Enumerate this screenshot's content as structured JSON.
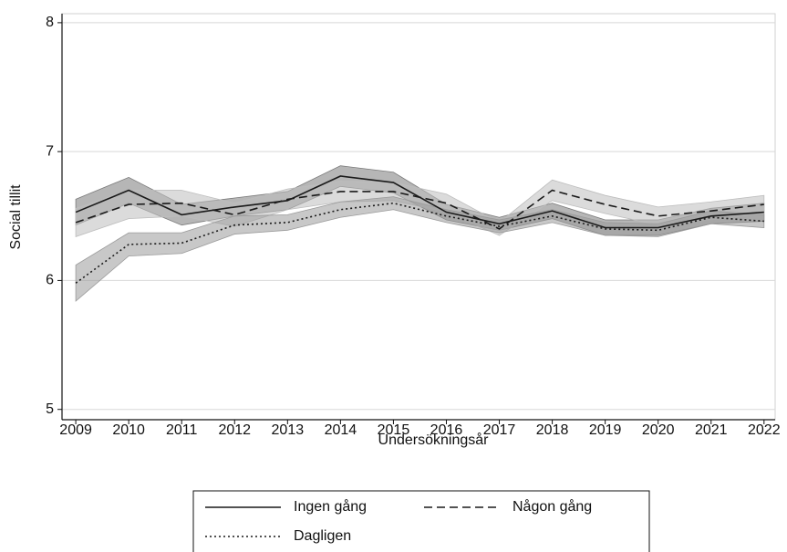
{
  "chart_data": {
    "type": "line",
    "x_label": "Undersökningsår",
    "y_label": "Social tillit",
    "x": [
      2009,
      2010,
      2011,
      2012,
      2013,
      2014,
      2015,
      2016,
      2017,
      2018,
      2019,
      2020,
      2021,
      2022
    ],
    "xlim": [
      2008.74,
      2022.21
    ],
    "xticks": [
      2009,
      2010,
      2011,
      2012,
      2013,
      2014,
      2015,
      2016,
      2017,
      2018,
      2019,
      2020,
      2021,
      2022
    ],
    "ylim": [
      4.92,
      8.07
    ],
    "yticks": [
      5,
      6,
      7,
      8
    ],
    "grid": true,
    "legend": "bottom",
    "series": [
      {
        "name": "Ingen gång",
        "color": "#1a1a1a",
        "style": "solid",
        "band_color": "#7a7a7a",
        "values": [
          6.53,
          6.7,
          6.51,
          6.57,
          6.62,
          6.81,
          6.76,
          6.53,
          6.44,
          6.54,
          6.41,
          6.41,
          6.5,
          6.53
        ],
        "lower": [
          6.43,
          6.6,
          6.43,
          6.5,
          6.55,
          6.73,
          6.68,
          6.47,
          6.39,
          6.48,
          6.35,
          6.35,
          6.44,
          6.46
        ],
        "upper": [
          6.63,
          6.8,
          6.59,
          6.64,
          6.69,
          6.89,
          6.84,
          6.59,
          6.49,
          6.6,
          6.47,
          6.47,
          6.56,
          6.6
        ]
      },
      {
        "name": "Någon gång",
        "color": "#1a1a1a",
        "style": "dashed",
        "band_color": "#bdbdbd",
        "values": [
          6.45,
          6.59,
          6.6,
          6.51,
          6.63,
          6.69,
          6.69,
          6.6,
          6.4,
          6.7,
          6.59,
          6.5,
          6.54,
          6.59
        ],
        "lower": [
          6.34,
          6.48,
          6.5,
          6.42,
          6.55,
          6.61,
          6.62,
          6.53,
          6.35,
          6.62,
          6.52,
          6.43,
          6.47,
          6.52
        ],
        "upper": [
          6.56,
          6.7,
          6.7,
          6.6,
          6.71,
          6.77,
          6.76,
          6.67,
          6.45,
          6.78,
          6.66,
          6.57,
          6.61,
          6.66
        ]
      },
      {
        "name": "Dagligen",
        "color": "#1a1a1a",
        "style": "dotted",
        "band_color": "#9a9a9a",
        "values": [
          5.98,
          6.28,
          6.29,
          6.43,
          6.45,
          6.55,
          6.6,
          6.5,
          6.42,
          6.5,
          6.4,
          6.39,
          6.49,
          6.46
        ],
        "lower": [
          5.84,
          6.19,
          6.21,
          6.36,
          6.39,
          6.49,
          6.55,
          6.45,
          6.37,
          6.45,
          6.35,
          6.34,
          6.44,
          6.41
        ],
        "upper": [
          6.12,
          6.37,
          6.37,
          6.5,
          6.51,
          6.61,
          6.65,
          6.55,
          6.47,
          6.55,
          6.45,
          6.44,
          6.54,
          6.51
        ]
      }
    ]
  }
}
